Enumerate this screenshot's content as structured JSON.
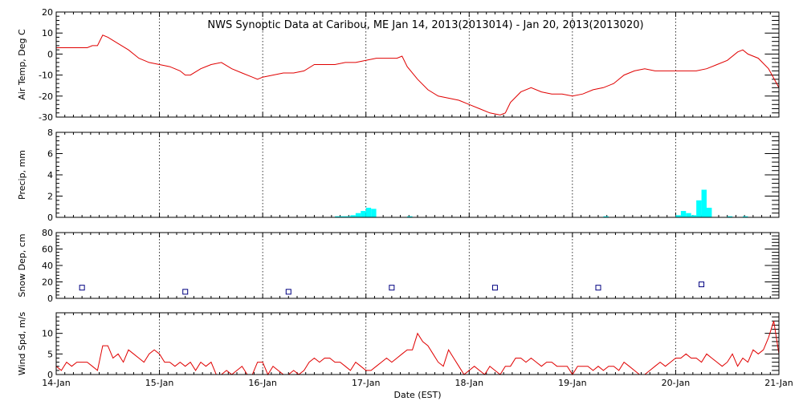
{
  "chart_data": {
    "title": "NWS Synoptic Data at Caribou, ME   Jan 14, 2013(2013014) - Jan 20, 2013(2013020)",
    "xlabel": "Date (EST)",
    "x_ticks": [
      "14-Jan",
      "15-Jan",
      "16-Jan",
      "17-Jan",
      "18-Jan",
      "19-Jan",
      "20-Jan",
      "21-Jan"
    ],
    "x_range_days": [
      14,
      21
    ],
    "panels": [
      {
        "id": "air_temp",
        "type": "line",
        "ylabel": "Air Temp, Deg C",
        "ylim": [
          -30,
          20
        ],
        "yticks": [
          -30,
          -20,
          -10,
          0,
          10,
          20
        ],
        "color": "#e00000",
        "x": [
          14.0,
          14.1,
          14.2,
          14.3,
          14.35,
          14.4,
          14.45,
          14.5,
          14.6,
          14.7,
          14.8,
          14.9,
          15.0,
          15.1,
          15.2,
          15.25,
          15.3,
          15.4,
          15.5,
          15.6,
          15.7,
          15.8,
          15.9,
          15.95,
          16.0,
          16.1,
          16.2,
          16.3,
          16.4,
          16.5,
          16.6,
          16.7,
          16.8,
          16.9,
          17.0,
          17.1,
          17.2,
          17.3,
          17.35,
          17.4,
          17.5,
          17.6,
          17.7,
          17.8,
          17.9,
          18.0,
          18.1,
          18.2,
          18.3,
          18.35,
          18.4,
          18.5,
          18.6,
          18.7,
          18.8,
          18.9,
          19.0,
          19.1,
          19.2,
          19.3,
          19.4,
          19.5,
          19.6,
          19.7,
          19.8,
          19.9,
          20.0,
          20.1,
          20.2,
          20.3,
          20.4,
          20.5,
          20.6,
          20.65,
          20.7,
          20.8,
          20.9,
          21.0
        ],
        "y": [
          3,
          3,
          3,
          3,
          4,
          4,
          9,
          8,
          5,
          2,
          -2,
          -4,
          -5,
          -6,
          -8,
          -10,
          -10,
          -7,
          -5,
          -4,
          -7,
          -9,
          -11,
          -12,
          -11,
          -10,
          -9,
          -9,
          -8,
          -5,
          -5,
          -5,
          -4,
          -4,
          -3,
          -2,
          -2,
          -2,
          -1,
          -6,
          -12,
          -17,
          -20,
          -21,
          -22,
          -24,
          -26,
          -28,
          -29,
          -28,
          -23,
          -18,
          -16,
          -18,
          -19,
          -19,
          -20,
          -19,
          -17,
          -16,
          -14,
          -10,
          -8,
          -7,
          -8,
          -8,
          -8,
          -8,
          -8,
          -7,
          -5,
          -3,
          1,
          2,
          0,
          -2,
          -7,
          -16
        ]
      },
      {
        "id": "precip",
        "type": "bar",
        "ylabel": "Precip, mm",
        "ylim": [
          0,
          8
        ],
        "yticks": [
          0,
          2,
          4,
          6,
          8
        ],
        "color": "#00ffff",
        "bar_width_days": 0.05,
        "x": [
          16.7,
          16.75,
          16.8,
          16.85,
          16.9,
          16.95,
          17.0,
          17.05,
          17.4,
          19.3,
          20.0,
          20.05,
          20.1,
          20.15,
          20.2,
          20.25,
          20.3,
          20.5,
          20.65
        ],
        "y": [
          0.1,
          0.1,
          0.1,
          0.2,
          0.4,
          0.6,
          0.9,
          0.8,
          0.1,
          0.1,
          0.2,
          0.6,
          0.4,
          0.2,
          1.6,
          2.6,
          0.9,
          0.1,
          0.1
        ]
      },
      {
        "id": "snow_depth",
        "type": "scatter",
        "ylabel": "Snow Dep, cm",
        "ylim": [
          0,
          80
        ],
        "yticks": [
          0,
          20,
          40,
          60,
          80
        ],
        "color": "#000080",
        "x": [
          14.25,
          15.25,
          16.25,
          17.25,
          18.25,
          19.25,
          20.25
        ],
        "y": [
          13,
          8,
          8,
          13,
          13,
          13,
          17
        ]
      },
      {
        "id": "wind_speed",
        "type": "line",
        "ylabel": "Wind Spd, m/s",
        "ylim": [
          0,
          15
        ],
        "yticks": [
          0,
          5,
          10
        ],
        "color": "#e00000",
        "x": [
          14.0,
          14.05,
          14.1,
          14.15,
          14.2,
          14.25,
          14.3,
          14.35,
          14.4,
          14.45,
          14.5,
          14.55,
          14.6,
          14.65,
          14.7,
          14.75,
          14.8,
          14.85,
          14.9,
          14.95,
          15.0,
          15.05,
          15.1,
          15.15,
          15.2,
          15.25,
          15.3,
          15.35,
          15.4,
          15.45,
          15.5,
          15.55,
          15.6,
          15.65,
          15.7,
          15.75,
          15.8,
          15.85,
          15.9,
          15.95,
          16.0,
          16.05,
          16.1,
          16.15,
          16.2,
          16.25,
          16.3,
          16.35,
          16.4,
          16.45,
          16.5,
          16.55,
          16.6,
          16.65,
          16.7,
          16.75,
          16.8,
          16.85,
          16.9,
          16.95,
          17.0,
          17.05,
          17.1,
          17.15,
          17.2,
          17.25,
          17.3,
          17.35,
          17.4,
          17.45,
          17.5,
          17.55,
          17.6,
          17.65,
          17.7,
          17.75,
          17.8,
          17.85,
          17.9,
          17.95,
          18.0,
          18.05,
          18.1,
          18.15,
          18.2,
          18.25,
          18.3,
          18.35,
          18.4,
          18.45,
          18.5,
          18.55,
          18.6,
          18.65,
          18.7,
          18.75,
          18.8,
          18.85,
          18.9,
          18.95,
          19.0,
          19.05,
          19.1,
          19.15,
          19.2,
          19.25,
          19.3,
          19.35,
          19.4,
          19.45,
          19.5,
          19.55,
          19.6,
          19.65,
          19.7,
          19.75,
          19.8,
          19.85,
          19.9,
          19.95,
          20.0,
          20.05,
          20.1,
          20.15,
          20.2,
          20.25,
          20.3,
          20.35,
          20.4,
          20.45,
          20.5,
          20.55,
          20.6,
          20.65,
          20.7,
          20.75,
          20.8,
          20.85,
          20.9,
          20.95,
          21.0
        ],
        "y": [
          2,
          1,
          3,
          2,
          3,
          3,
          3,
          2,
          1,
          7,
          7,
          4,
          5,
          3,
          6,
          5,
          4,
          3,
          5,
          6,
          5,
          3,
          3,
          2,
          3,
          2,
          3,
          1,
          3,
          2,
          3,
          0,
          0,
          1,
          0,
          1,
          2,
          0,
          0,
          3,
          3,
          0,
          2,
          1,
          0,
          0,
          1,
          0,
          1,
          3,
          4,
          3,
          4,
          4,
          3,
          3,
          2,
          1,
          3,
          2,
          1,
          1,
          2,
          3,
          4,
          3,
          4,
          5,
          6,
          6,
          10,
          8,
          7,
          5,
          3,
          2,
          6,
          4,
          2,
          0,
          1,
          2,
          1,
          0,
          2,
          1,
          0,
          2,
          2,
          4,
          4,
          3,
          4,
          3,
          2,
          3,
          3,
          2,
          2,
          2,
          0,
          2,
          2,
          2,
          1,
          2,
          1,
          2,
          2,
          1,
          3,
          2,
          1,
          0,
          0,
          1,
          2,
          3,
          2,
          3,
          4,
          4,
          5,
          4,
          4,
          3,
          5,
          4,
          3,
          2,
          3,
          5,
          2,
          4,
          3,
          6,
          5,
          6,
          9,
          13,
          5
        ]
      }
    ]
  }
}
